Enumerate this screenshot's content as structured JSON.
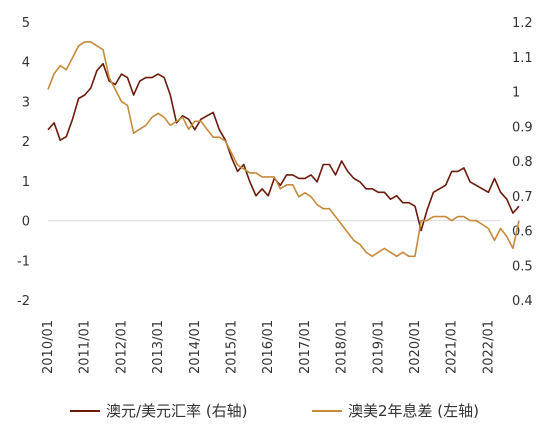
{
  "chart_data": {
    "type": "line",
    "title": "",
    "xlabel": "",
    "x_ticks": [
      "2010/01",
      "2011/01",
      "2012/01",
      "2013/01",
      "2014/01",
      "2015/01",
      "2016/01",
      "2017/01",
      "2018/01",
      "2019/01",
      "2020/01",
      "2021/01",
      "2022/01"
    ],
    "y_left": {
      "range": [
        -2,
        5
      ],
      "ticks": [
        "5",
        "4",
        "3",
        "2",
        "1",
        "0",
        "-1",
        "-2"
      ]
    },
    "y_right": {
      "range": [
        0.4,
        1.2
      ],
      "ticks": [
        "1.2",
        "1.1",
        "1",
        "0.9",
        "0.8",
        "0.7",
        "0.6",
        "0.5",
        "0.4"
      ]
    },
    "grid": false,
    "legend_position": "bottom",
    "series": [
      {
        "name": "澳元/美元汇率 (右轴)",
        "axis": "right",
        "color": "#6b1a0c",
        "points": [
          [
            "2010/01",
            0.89
          ],
          [
            "2010/03",
            0.91
          ],
          [
            "2010/05",
            0.86
          ],
          [
            "2010/07",
            0.87
          ],
          [
            "2010/09",
            0.92
          ],
          [
            "2010/11",
            0.98
          ],
          [
            "2011/01",
            0.99
          ],
          [
            "2011/03",
            1.01
          ],
          [
            "2011/05",
            1.06
          ],
          [
            "2011/07",
            1.08
          ],
          [
            "2011/09",
            1.03
          ],
          [
            "2011/11",
            1.02
          ],
          [
            "2012/01",
            1.05
          ],
          [
            "2012/03",
            1.04
          ],
          [
            "2012/05",
            0.99
          ],
          [
            "2012/07",
            1.03
          ],
          [
            "2012/09",
            1.04
          ],
          [
            "2012/11",
            1.04
          ],
          [
            "2013/01",
            1.05
          ],
          [
            "2013/03",
            1.04
          ],
          [
            "2013/05",
            0.99
          ],
          [
            "2013/07",
            0.91
          ],
          [
            "2013/09",
            0.93
          ],
          [
            "2013/11",
            0.92
          ],
          [
            "2014/01",
            0.89
          ],
          [
            "2014/03",
            0.92
          ],
          [
            "2014/05",
            0.93
          ],
          [
            "2014/07",
            0.94
          ],
          [
            "2014/09",
            0.89
          ],
          [
            "2014/11",
            0.86
          ],
          [
            "2015/01",
            0.81
          ],
          [
            "2015/03",
            0.77
          ],
          [
            "2015/05",
            0.79
          ],
          [
            "2015/07",
            0.74
          ],
          [
            "2015/09",
            0.7
          ],
          [
            "2015/11",
            0.72
          ],
          [
            "2016/01",
            0.7
          ],
          [
            "2016/03",
            0.75
          ],
          [
            "2016/05",
            0.73
          ],
          [
            "2016/07",
            0.76
          ],
          [
            "2016/09",
            0.76
          ],
          [
            "2016/11",
            0.75
          ],
          [
            "2017/01",
            0.75
          ],
          [
            "2017/03",
            0.76
          ],
          [
            "2017/05",
            0.74
          ],
          [
            "2017/07",
            0.79
          ],
          [
            "2017/09",
            0.79
          ],
          [
            "2017/11",
            0.76
          ],
          [
            "2018/01",
            0.8
          ],
          [
            "2018/03",
            0.77
          ],
          [
            "2018/05",
            0.75
          ],
          [
            "2018/07",
            0.74
          ],
          [
            "2018/09",
            0.72
          ],
          [
            "2018/11",
            0.72
          ],
          [
            "2019/01",
            0.71
          ],
          [
            "2019/03",
            0.71
          ],
          [
            "2019/05",
            0.69
          ],
          [
            "2019/07",
            0.7
          ],
          [
            "2019/09",
            0.68
          ],
          [
            "2019/11",
            0.68
          ],
          [
            "2020/01",
            0.67
          ],
          [
            "2020/03",
            0.6
          ],
          [
            "2020/05",
            0.66
          ],
          [
            "2020/07",
            0.71
          ],
          [
            "2020/09",
            0.72
          ],
          [
            "2020/11",
            0.73
          ],
          [
            "2021/01",
            0.77
          ],
          [
            "2021/03",
            0.77
          ],
          [
            "2021/05",
            0.78
          ],
          [
            "2021/07",
            0.74
          ],
          [
            "2021/09",
            0.73
          ],
          [
            "2021/11",
            0.72
          ],
          [
            "2022/01",
            0.71
          ],
          [
            "2022/03",
            0.75
          ],
          [
            "2022/05",
            0.71
          ],
          [
            "2022/07",
            0.69
          ],
          [
            "2022/09",
            0.65
          ],
          [
            "2022/11",
            0.67
          ]
        ]
      },
      {
        "name": "澳美2年息差 (左轴)",
        "axis": "left",
        "color": "#c68a3c",
        "points": [
          [
            "2010/01",
            3.3
          ],
          [
            "2010/03",
            3.7
          ],
          [
            "2010/05",
            3.9
          ],
          [
            "2010/07",
            3.8
          ],
          [
            "2010/09",
            4.1
          ],
          [
            "2010/11",
            4.4
          ],
          [
            "2011/01",
            4.5
          ],
          [
            "2011/03",
            4.5
          ],
          [
            "2011/05",
            4.4
          ],
          [
            "2011/07",
            4.3
          ],
          [
            "2011/09",
            3.6
          ],
          [
            "2011/11",
            3.3
          ],
          [
            "2012/01",
            3.0
          ],
          [
            "2012/03",
            2.9
          ],
          [
            "2012/05",
            2.2
          ],
          [
            "2012/07",
            2.3
          ],
          [
            "2012/09",
            2.4
          ],
          [
            "2012/11",
            2.6
          ],
          [
            "2013/01",
            2.7
          ],
          [
            "2013/03",
            2.6
          ],
          [
            "2013/05",
            2.4
          ],
          [
            "2013/07",
            2.5
          ],
          [
            "2013/09",
            2.6
          ],
          [
            "2013/11",
            2.3
          ],
          [
            "2014/01",
            2.5
          ],
          [
            "2014/03",
            2.5
          ],
          [
            "2014/05",
            2.3
          ],
          [
            "2014/07",
            2.1
          ],
          [
            "2014/09",
            2.1
          ],
          [
            "2014/11",
            2.0
          ],
          [
            "2015/01",
            1.7
          ],
          [
            "2015/03",
            1.4
          ],
          [
            "2015/05",
            1.3
          ],
          [
            "2015/07",
            1.2
          ],
          [
            "2015/09",
            1.2
          ],
          [
            "2015/11",
            1.1
          ],
          [
            "2016/01",
            1.1
          ],
          [
            "2016/03",
            1.1
          ],
          [
            "2016/05",
            0.8
          ],
          [
            "2016/07",
            0.9
          ],
          [
            "2016/09",
            0.9
          ],
          [
            "2016/11",
            0.6
          ],
          [
            "2017/01",
            0.7
          ],
          [
            "2017/03",
            0.6
          ],
          [
            "2017/05",
            0.4
          ],
          [
            "2017/07",
            0.3
          ],
          [
            "2017/09",
            0.3
          ],
          [
            "2017/11",
            0.1
          ],
          [
            "2018/01",
            -0.1
          ],
          [
            "2018/03",
            -0.3
          ],
          [
            "2018/05",
            -0.5
          ],
          [
            "2018/07",
            -0.6
          ],
          [
            "2018/09",
            -0.8
          ],
          [
            "2018/11",
            -0.9
          ],
          [
            "2019/01",
            -0.8
          ],
          [
            "2019/03",
            -0.7
          ],
          [
            "2019/05",
            -0.8
          ],
          [
            "2019/07",
            -0.9
          ],
          [
            "2019/09",
            -0.8
          ],
          [
            "2019/11",
            -0.9
          ],
          [
            "2020/01",
            -0.9
          ],
          [
            "2020/03",
            0.0
          ],
          [
            "2020/05",
            0.0
          ],
          [
            "2020/07",
            0.1
          ],
          [
            "2020/09",
            0.1
          ],
          [
            "2020/11",
            0.1
          ],
          [
            "2021/01",
            0.0
          ],
          [
            "2021/03",
            0.1
          ],
          [
            "2021/05",
            0.1
          ],
          [
            "2021/07",
            0.0
          ],
          [
            "2021/09",
            0.0
          ],
          [
            "2021/11",
            -0.1
          ],
          [
            "2022/01",
            -0.2
          ],
          [
            "2022/03",
            -0.5
          ],
          [
            "2022/05",
            -0.2
          ],
          [
            "2022/07",
            -0.4
          ],
          [
            "2022/09",
            -0.7
          ],
          [
            "2022/11",
            0.0
          ]
        ]
      }
    ]
  }
}
